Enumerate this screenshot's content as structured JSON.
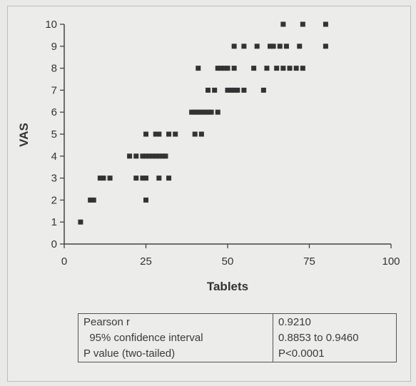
{
  "chart_data": {
    "type": "scatter",
    "title": "",
    "xlabel": "Tablets",
    "ylabel": "VAS",
    "xlim": [
      0,
      100
    ],
    "ylim": [
      0,
      10
    ],
    "xticks": [
      0,
      25,
      50,
      75,
      100
    ],
    "yticks": [
      0,
      1,
      2,
      3,
      4,
      5,
      6,
      7,
      8,
      9,
      10
    ],
    "grid": false,
    "marker_color": "#333333",
    "points": [
      [
        5,
        1
      ],
      [
        8,
        2
      ],
      [
        9,
        2
      ],
      [
        25,
        2
      ],
      [
        11,
        3
      ],
      [
        12,
        3
      ],
      [
        14,
        3
      ],
      [
        22,
        3
      ],
      [
        24,
        3
      ],
      [
        25,
        3
      ],
      [
        29,
        3
      ],
      [
        32,
        3
      ],
      [
        20,
        4
      ],
      [
        22,
        4
      ],
      [
        24,
        4
      ],
      [
        25,
        4
      ],
      [
        26,
        4
      ],
      [
        27,
        4
      ],
      [
        28,
        4
      ],
      [
        29,
        4
      ],
      [
        30,
        4
      ],
      [
        31,
        4
      ],
      [
        25,
        5
      ],
      [
        28,
        5
      ],
      [
        29,
        5
      ],
      [
        32,
        5
      ],
      [
        34,
        5
      ],
      [
        40,
        5
      ],
      [
        42,
        5
      ],
      [
        39,
        6
      ],
      [
        40,
        6
      ],
      [
        41,
        6
      ],
      [
        42,
        6
      ],
      [
        43,
        6
      ],
      [
        44,
        6
      ],
      [
        45,
        6
      ],
      [
        47,
        6
      ],
      [
        44,
        7
      ],
      [
        46,
        7
      ],
      [
        50,
        7
      ],
      [
        51,
        7
      ],
      [
        52,
        7
      ],
      [
        53,
        7
      ],
      [
        55,
        7
      ],
      [
        61,
        7
      ],
      [
        41,
        8
      ],
      [
        47,
        8
      ],
      [
        48,
        8
      ],
      [
        49,
        8
      ],
      [
        50,
        8
      ],
      [
        52,
        8
      ],
      [
        58,
        8
      ],
      [
        62,
        8
      ],
      [
        65,
        8
      ],
      [
        67,
        8
      ],
      [
        69,
        8
      ],
      [
        71,
        8
      ],
      [
        73,
        8
      ],
      [
        52,
        9
      ],
      [
        55,
        9
      ],
      [
        59,
        9
      ],
      [
        63,
        9
      ],
      [
        64,
        9
      ],
      [
        66,
        9
      ],
      [
        68,
        9
      ],
      [
        72,
        9
      ],
      [
        80,
        9
      ],
      [
        67,
        10
      ],
      [
        73,
        10
      ],
      [
        80,
        10
      ]
    ]
  },
  "stats_table": {
    "rows": [
      {
        "label": "Pearson r",
        "value": "0.9210"
      },
      {
        "label": "  95% confidence interval",
        "value": "0.8853 to 0.9460"
      },
      {
        "label": "P value (two-tailed)",
        "value": "P<0.0001"
      }
    ]
  }
}
